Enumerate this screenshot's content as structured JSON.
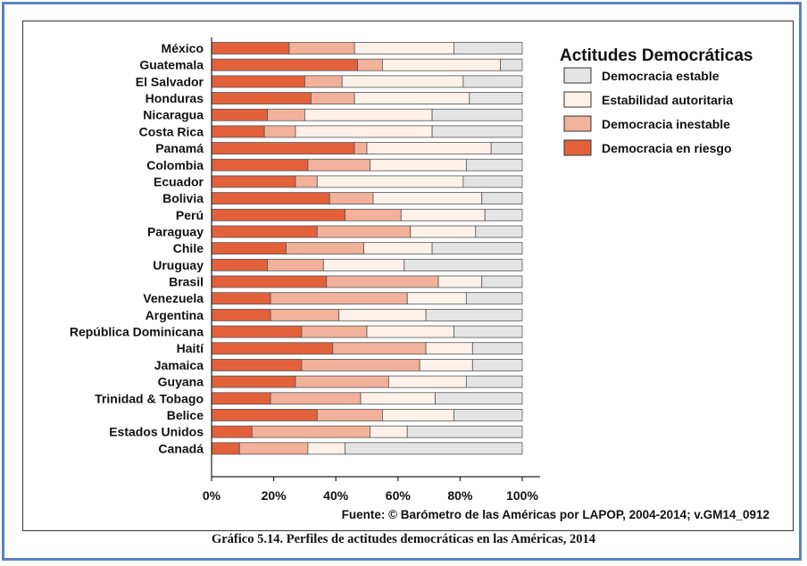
{
  "caption": "Gráfico 5.14.  Perfiles de actitudes democráticas en las Américas, 2014",
  "source": "Fuente: © Barómetro de las Américas por LAPOP, 2004-2014; v.GM14_0912",
  "chart_data": {
    "type": "bar",
    "orientation": "horizontal",
    "stacked": true,
    "title": "",
    "xlabel": "",
    "ylabel": "",
    "xlim": [
      0,
      100
    ],
    "x_ticks": [
      "0%",
      "20%",
      "40%",
      "60%",
      "80%",
      "100%"
    ],
    "legend_title": "Actitudes Democráticas",
    "legend_position": "right",
    "grid": false,
    "categories": [
      "México",
      "Guatemala",
      "El Salvador",
      "Honduras",
      "Nicaragua",
      "Costa Rica",
      "Panamá",
      "Colombia",
      "Ecuador",
      "Bolivia",
      "Perú",
      "Paraguay",
      "Chile",
      "Uruguay",
      "Brasil",
      "Venezuela",
      "Argentina",
      "República Dominicana",
      "Haití",
      "Jamaica",
      "Guyana",
      "Trinidad & Tobago",
      "Belice",
      "Estados Unidos",
      "Canadá"
    ],
    "series": [
      {
        "name": "Democracia en riesgo",
        "color": "#e2613b",
        "values": [
          25,
          47,
          30,
          32,
          18,
          17,
          46,
          31,
          27,
          38,
          43,
          34,
          24,
          18,
          37,
          19,
          19,
          29,
          39,
          29,
          27,
          19,
          34,
          13,
          9
        ]
      },
      {
        "name": "Democracia inestable",
        "color": "#f2b19a",
        "values": [
          21,
          8,
          12,
          14,
          12,
          10,
          4,
          20,
          7,
          14,
          18,
          30,
          25,
          18,
          36,
          44,
          22,
          21,
          30,
          38,
          30,
          29,
          21,
          38,
          22
        ]
      },
      {
        "name": "Estabilidad autoritaria",
        "color": "#fdf1ea",
        "values": [
          32,
          38,
          39,
          37,
          41,
          44,
          40,
          31,
          47,
          35,
          27,
          21,
          22,
          26,
          14,
          19,
          28,
          28,
          15,
          17,
          25,
          24,
          23,
          12,
          12
        ]
      },
      {
        "name": "Democracia estable",
        "color": "#e4e4e4",
        "values": [
          22,
          7,
          19,
          17,
          29,
          29,
          10,
          18,
          19,
          13,
          12,
          15,
          29,
          38,
          13,
          18,
          31,
          22,
          16,
          16,
          18,
          28,
          22,
          37,
          57
        ]
      }
    ],
    "legend_order": [
      "Democracia estable",
      "Estabilidad autoritaria",
      "Democracia inestable",
      "Democracia en riesgo"
    ]
  }
}
